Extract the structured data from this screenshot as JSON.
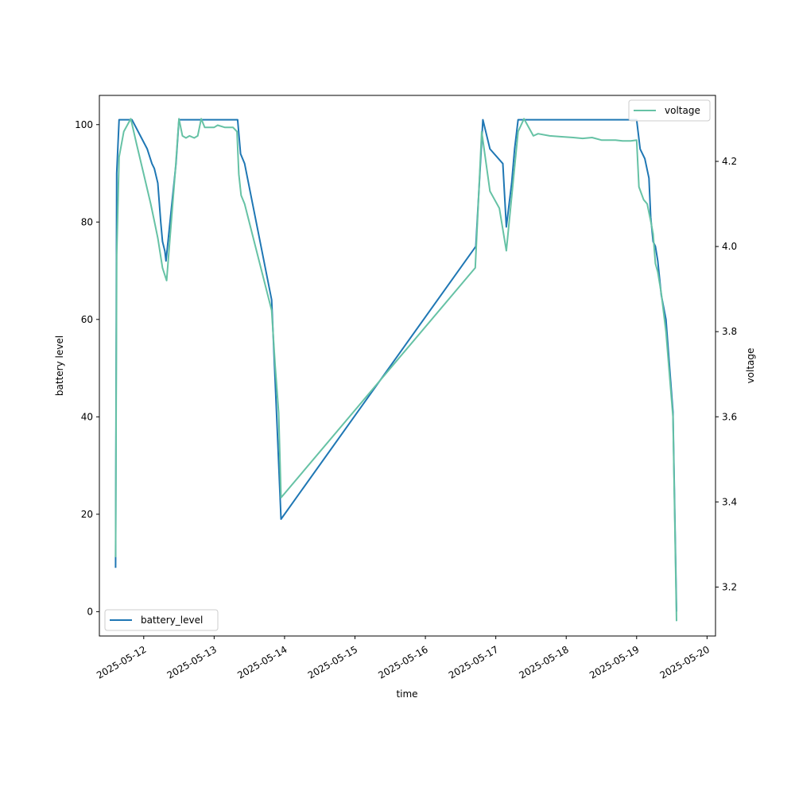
{
  "chart_data": {
    "type": "line",
    "xlabel": "time",
    "ylabel_left": "battery level",
    "ylabel_right": "voltage",
    "x_ticks": [
      "2025-05-12",
      "2025-05-13",
      "2025-05-14",
      "2025-05-15",
      "2025-05-16",
      "2025-05-17",
      "2025-05-18",
      "2025-05-19",
      "2025-05-20"
    ],
    "y_left_ticks": [
      0,
      20,
      40,
      60,
      80,
      100
    ],
    "y_right_ticks": [
      3.2,
      3.4,
      3.6,
      3.8,
      4.0,
      4.2
    ],
    "y_left_lim": [
      -5,
      106
    ],
    "y_right_lim": [
      3.085,
      4.355
    ],
    "x_lim": [
      "2025-05-11 08:53",
      "2025-05-20 02:53"
    ],
    "legend_left": {
      "label": "battery_level",
      "placement": "lower-left"
    },
    "legend_right": {
      "label": "voltage",
      "placement": "upper-right"
    },
    "colors": {
      "battery_level": "#1f77b4",
      "voltage": "#66c2a5"
    },
    "series": [
      {
        "name": "battery_level",
        "axis": "left",
        "points": [
          [
            "2025-05-11 14:24",
            9
          ],
          [
            "2025-05-11 14:48",
            90
          ],
          [
            "2025-05-11 15:36",
            101
          ],
          [
            "2025-05-11 20:00",
            101
          ],
          [
            "2025-05-12 01:12",
            95
          ],
          [
            "2025-05-12 02:48",
            92
          ],
          [
            "2025-05-12 03:36",
            91
          ],
          [
            "2025-05-12 04:48",
            88
          ],
          [
            "2025-05-12 05:48",
            80
          ],
          [
            "2025-05-12 06:24",
            76
          ],
          [
            "2025-05-12 07:12",
            74
          ],
          [
            "2025-05-12 07:36",
            72
          ],
          [
            "2025-05-12 11:00",
            92
          ],
          [
            "2025-05-12 12:00",
            101
          ],
          [
            "2025-05-13 08:00",
            101
          ],
          [
            "2025-05-13 09:00",
            94
          ],
          [
            "2025-05-13 10:24",
            92
          ],
          [
            "2025-05-13 19:36",
            64
          ],
          [
            "2025-05-13 21:36",
            36
          ],
          [
            "2025-05-13 22:48",
            19
          ],
          [
            "2025-05-16 17:12",
            75
          ],
          [
            "2025-05-16 19:36",
            101
          ],
          [
            "2025-05-16 22:00",
            95
          ],
          [
            "2025-05-17 02:24",
            92
          ],
          [
            "2025-05-17 03:36",
            79
          ],
          [
            "2025-05-17 05:24",
            88
          ],
          [
            "2025-05-17 06:24",
            95
          ],
          [
            "2025-05-17 07:36",
            101
          ],
          [
            "2025-05-18 21:36",
            101
          ],
          [
            "2025-05-19 00:00",
            101
          ],
          [
            "2025-05-19 01:12",
            95
          ],
          [
            "2025-05-19 02:48",
            93
          ],
          [
            "2025-05-19 04:12",
            89
          ],
          [
            "2025-05-19 04:48",
            81
          ],
          [
            "2025-05-19 05:36",
            76
          ],
          [
            "2025-05-19 06:24",
            75
          ],
          [
            "2025-05-19 07:12",
            72
          ],
          [
            "2025-05-19 08:24",
            65
          ],
          [
            "2025-05-19 10:00",
            60
          ],
          [
            "2025-05-19 12:24",
            41
          ],
          [
            "2025-05-19 13:36",
            0
          ]
        ]
      },
      {
        "name": "voltage",
        "axis": "right",
        "points": [
          [
            "2025-05-11 14:24",
            3.27
          ],
          [
            "2025-05-11 14:48",
            3.98
          ],
          [
            "2025-05-11 15:36",
            4.21
          ],
          [
            "2025-05-11 17:12",
            4.27
          ],
          [
            "2025-05-11 19:36",
            4.3
          ],
          [
            "2025-05-11 21:36",
            4.24
          ],
          [
            "2025-05-12 00:00",
            4.17
          ],
          [
            "2025-05-12 02:24",
            4.1
          ],
          [
            "2025-05-12 03:36",
            4.06
          ],
          [
            "2025-05-12 04:48",
            4.02
          ],
          [
            "2025-05-12 06:24",
            3.95
          ],
          [
            "2025-05-12 07:48",
            3.92
          ],
          [
            "2025-05-12 10:48",
            4.18
          ],
          [
            "2025-05-12 12:00",
            4.3
          ],
          [
            "2025-05-12 13:12",
            4.26
          ],
          [
            "2025-05-12 14:24",
            4.255
          ],
          [
            "2025-05-12 15:36",
            4.26
          ],
          [
            "2025-05-12 17:12",
            4.255
          ],
          [
            "2025-05-12 18:24",
            4.26
          ],
          [
            "2025-05-12 19:36",
            4.3
          ],
          [
            "2025-05-12 20:48",
            4.28
          ],
          [
            "2025-05-12 22:00",
            4.28
          ],
          [
            "2025-05-13 00:00",
            4.28
          ],
          [
            "2025-05-13 01:12",
            4.285
          ],
          [
            "2025-05-13 03:36",
            4.28
          ],
          [
            "2025-05-13 06:24",
            4.28
          ],
          [
            "2025-05-13 07:48",
            4.27
          ],
          [
            "2025-05-13 08:24",
            4.17
          ],
          [
            "2025-05-13 09:12",
            4.12
          ],
          [
            "2025-05-13 10:24",
            4.1
          ],
          [
            "2025-05-13 19:36",
            3.85
          ],
          [
            "2025-05-13 20:48",
            3.72
          ],
          [
            "2025-05-13 22:00",
            3.61
          ],
          [
            "2025-05-13 22:48",
            3.41
          ],
          [
            "2025-05-16 17:00",
            3.95
          ],
          [
            "2025-05-16 19:12",
            4.27
          ],
          [
            "2025-05-16 22:00",
            4.13
          ],
          [
            "2025-05-17 01:12",
            4.09
          ],
          [
            "2025-05-17 03:36",
            3.99
          ],
          [
            "2025-05-17 07:36",
            4.27
          ],
          [
            "2025-05-17 09:36",
            4.3
          ],
          [
            "2025-05-17 12:48",
            4.26
          ],
          [
            "2025-05-17 14:24",
            4.265
          ],
          [
            "2025-05-17 18:24",
            4.26
          ],
          [
            "2025-05-17 22:00",
            4.258
          ],
          [
            "2025-05-18 02:24",
            4.256
          ],
          [
            "2025-05-18 05:36",
            4.254
          ],
          [
            "2025-05-18 08:48",
            4.256
          ],
          [
            "2025-05-18 12:00",
            4.25
          ],
          [
            "2025-05-18 16:48",
            4.25
          ],
          [
            "2025-05-18 19:12",
            4.248
          ],
          [
            "2025-05-18 22:00",
            4.248
          ],
          [
            "2025-05-19 00:00",
            4.25
          ],
          [
            "2025-05-19 00:48",
            4.14
          ],
          [
            "2025-05-19 02:24",
            4.11
          ],
          [
            "2025-05-19 03:36",
            4.1
          ],
          [
            "2025-05-19 04:48",
            4.06
          ],
          [
            "2025-05-19 05:36",
            4.03
          ],
          [
            "2025-05-19 06:24",
            3.96
          ],
          [
            "2025-05-19 07:12",
            3.94
          ],
          [
            "2025-05-19 08:24",
            3.89
          ],
          [
            "2025-05-19 10:00",
            3.8
          ],
          [
            "2025-05-19 12:24",
            3.6
          ],
          [
            "2025-05-19 13:36",
            3.12
          ]
        ]
      }
    ]
  }
}
